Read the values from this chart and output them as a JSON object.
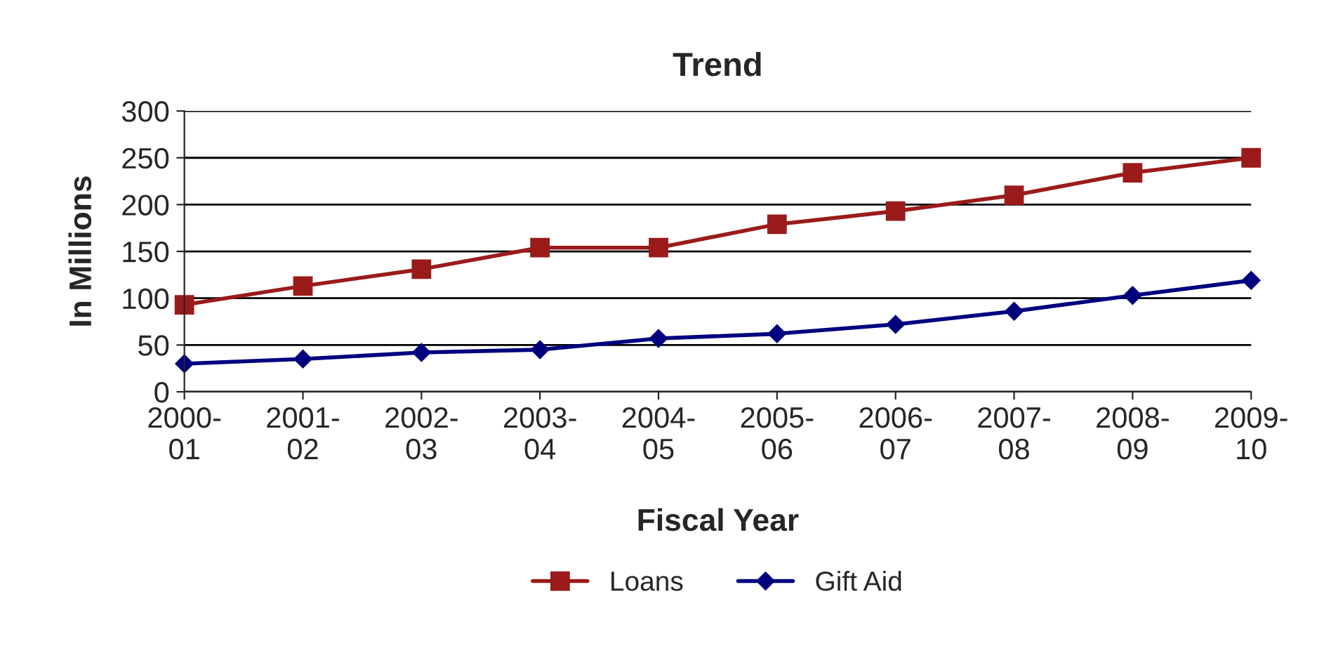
{
  "chart_data": {
    "type": "line",
    "title": "Trend",
    "xlabel": "Fiscal Year",
    "ylabel": "In Millions",
    "categories": [
      "2000-\n01",
      "2001-\n02",
      "2002-\n03",
      "2003-\n04",
      "2004-\n05",
      "2005-\n06",
      "2006-\n07",
      "2007-\n08",
      "2008-\n09",
      "2009-\n10"
    ],
    "series": [
      {
        "name": "Loans",
        "color": "#9b1b1b",
        "marker": "square",
        "values": [
          93,
          113,
          131,
          154,
          154,
          179,
          193,
          210,
          234,
          250
        ]
      },
      {
        "name": "Gift Aid",
        "color": "#00007f",
        "marker": "diamond",
        "values": [
          30,
          35,
          42,
          45,
          57,
          62,
          72,
          86,
          103,
          119
        ]
      }
    ],
    "ylim": [
      0,
      300
    ],
    "yticks": [
      0,
      50,
      100,
      150,
      200,
      250,
      300
    ],
    "grid": "y",
    "legend": "bottom",
    "line_style": "solid"
  }
}
